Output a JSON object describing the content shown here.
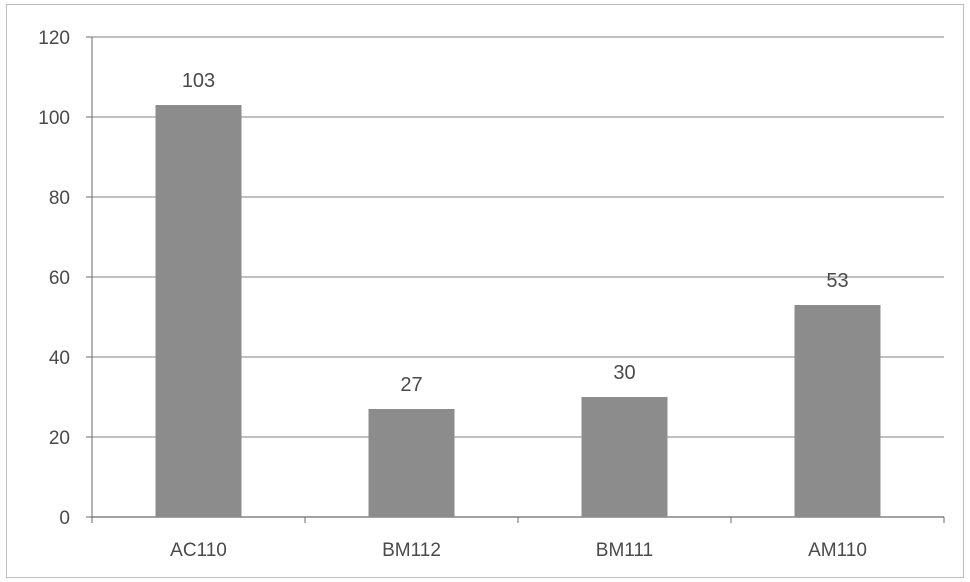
{
  "chart_data": {
    "type": "bar",
    "categories": [
      "AC110",
      "BM112",
      "BM111",
      "AM110"
    ],
    "values": [
      103,
      27,
      30,
      53
    ],
    "data_labels": [
      "103",
      "27",
      "30",
      "53"
    ],
    "ylim": [
      0,
      120
    ],
    "yticks": [
      0,
      20,
      40,
      60,
      80,
      100,
      120
    ],
    "ytick_labels": [
      "0",
      "20",
      "40",
      "60",
      "80",
      "100",
      "120"
    ],
    "grid": true,
    "legend": false,
    "colors": {
      "bar": "#8c8c8c",
      "grid": "#9a9a9a",
      "axis": "#6a6a6a",
      "text": "#4a4a4a"
    }
  }
}
